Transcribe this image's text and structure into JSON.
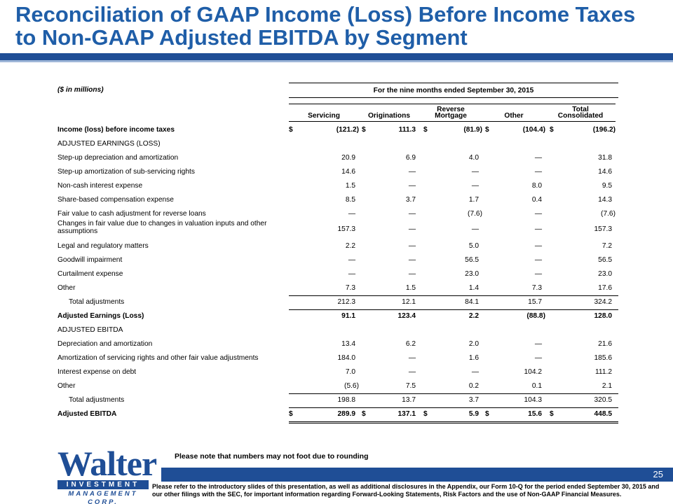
{
  "title": "Reconciliation of GAAP Income (Loss) Before Income Taxes to Non-GAAP Adjusted EBITDA by Segment",
  "colors": {
    "title": "#1f5ea8",
    "bar": "#1f4e96"
  },
  "table": {
    "units": "($ in millions)",
    "period": "For the nine months ended September 30, 2015",
    "columns": [
      {
        "top": "",
        "bottom": "Servicing"
      },
      {
        "top": "",
        "bottom": "Originations"
      },
      {
        "top": "Reverse",
        "bottom": "Mortgage"
      },
      {
        "top": "",
        "bottom": "Other"
      },
      {
        "top": "Total",
        "bottom": "Consolidated"
      }
    ],
    "rows": [
      {
        "label": "Income (loss) before income taxes",
        "values": [
          "(121.2)",
          "111.3",
          "(81.9)",
          "(104.4)",
          "(196.2)"
        ],
        "bold": true,
        "dollar": true
      },
      {
        "label": "ADJUSTED EARNINGS (LOSS)",
        "values": [],
        "section": true
      },
      {
        "label": "Step-up depreciation and amortization",
        "values": [
          "20.9",
          "6.9",
          "4.0",
          "—",
          "31.8"
        ]
      },
      {
        "label": "Step-up amortization of sub-servicing rights",
        "values": [
          "14.6",
          "—",
          "—",
          "—",
          "14.6"
        ]
      },
      {
        "label": "Non-cash interest expense",
        "values": [
          "1.5",
          "—",
          "—",
          "8.0",
          "9.5"
        ]
      },
      {
        "label": "Share-based compensation expense",
        "values": [
          "8.5",
          "3.7",
          "1.7",
          "0.4",
          "14.3"
        ]
      },
      {
        "label": "Fair value to cash adjustment for reverse loans",
        "values": [
          "—",
          "—",
          "(7.6)",
          "—",
          "(7.6)"
        ]
      },
      {
        "label": "Changes in fair value due to changes in valuation inputs and other",
        "label2": "assumptions",
        "values": [
          "157.3",
          "—",
          "—",
          "—",
          "157.3"
        ],
        "twoline": true
      },
      {
        "label": "Legal and regulatory matters",
        "values": [
          "2.2",
          "—",
          "5.0",
          "—",
          "7.2"
        ]
      },
      {
        "label": "Goodwill impairment",
        "values": [
          "—",
          "—",
          "56.5",
          "—",
          "56.5"
        ]
      },
      {
        "label": "Curtailment expense",
        "values": [
          "—",
          "—",
          "23.0",
          "—",
          "23.0"
        ]
      },
      {
        "label": "Other",
        "values": [
          "7.3",
          "1.5",
          "1.4",
          "7.3",
          "17.6"
        ]
      },
      {
        "label": "Total adjustments",
        "values": [
          "212.3",
          "12.1",
          "84.1",
          "15.7",
          "324.2"
        ],
        "indent": true,
        "rule": true
      },
      {
        "label": "Adjusted Earnings (Loss)",
        "values": [
          "91.1",
          "123.4",
          "2.2",
          "(88.8)",
          "128.0"
        ],
        "bold": true,
        "rule": true
      },
      {
        "label": "ADJUSTED EBITDA",
        "values": [],
        "section": true
      },
      {
        "label": "Depreciation and amortization",
        "values": [
          "13.4",
          "6.2",
          "2.0",
          "—",
          "21.6"
        ]
      },
      {
        "label": "Amortization of servicing rights and other fair value adjustments",
        "values": [
          "184.0",
          "—",
          "1.6",
          "—",
          "185.6"
        ]
      },
      {
        "label": "Interest expense on debt",
        "values": [
          "7.0",
          "—",
          "—",
          "104.2",
          "111.2"
        ]
      },
      {
        "label": "Other",
        "values": [
          "(5.6)",
          "7.5",
          "0.2",
          "0.1",
          "2.1"
        ]
      },
      {
        "label": "Total adjustments",
        "values": [
          "198.8",
          "13.7",
          "3.7",
          "104.3",
          "320.5"
        ],
        "indent": true,
        "rule": true
      },
      {
        "label": "Adjusted EBITDA",
        "values": [
          "289.9",
          "137.1",
          "5.9",
          "15.6",
          "448.5"
        ],
        "bold": true,
        "dollar": true,
        "rule": true,
        "double": true
      }
    ]
  },
  "dollar_sign": "$",
  "logo": {
    "word": "Walter",
    "band": "INVESTMENT",
    "sub": "MANAGEMENT CORP."
  },
  "note": "Please note that numbers may not foot due to rounding",
  "page_number": "25",
  "footer": "Please refer to the introductory slides of this presentation, as well as additional disclosures in the Appendix, our Form 10-Q for the period ended September 30, 2015 and our other filings with the SEC, for important information regarding Forward-Looking Statements, Risk Factors and the use of Non-GAAP Financial Measures."
}
